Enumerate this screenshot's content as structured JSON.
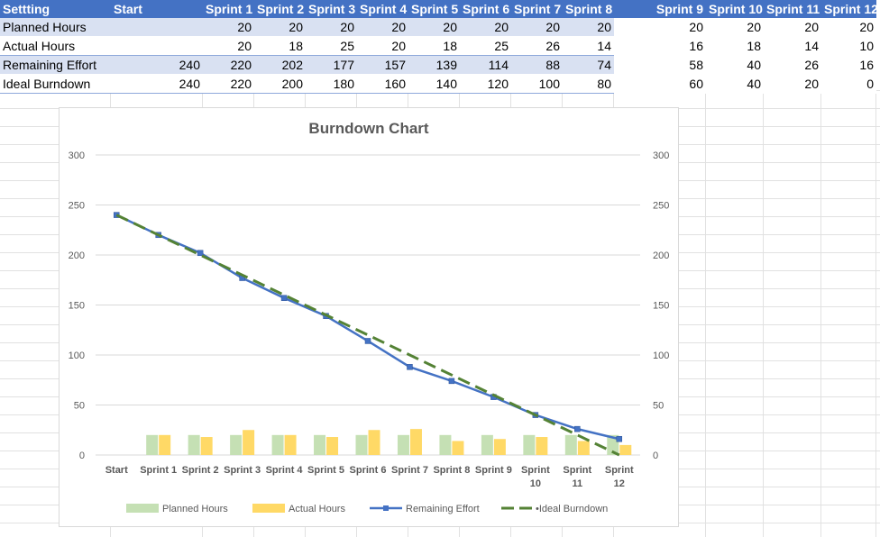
{
  "table": {
    "headers": [
      "Settting",
      "Start",
      "Sprint 1",
      "Sprint 2",
      "Sprint 3",
      "Sprint 4",
      "Sprint 5",
      "Sprint 6",
      "Sprint 7",
      "Sprint 8",
      "Sprint 9",
      "Sprint 10",
      "Sprint 11",
      "Sprint 12"
    ],
    "rows": [
      {
        "label": "Planned Hours",
        "cells": [
          "",
          "20",
          "20",
          "20",
          "20",
          "20",
          "20",
          "20",
          "20",
          "20",
          "20",
          "20",
          "20"
        ]
      },
      {
        "label": "Actual Hours",
        "cells": [
          "",
          "20",
          "18",
          "25",
          "20",
          "18",
          "25",
          "26",
          "14",
          "16",
          "18",
          "14",
          "10"
        ]
      },
      {
        "label": "Remaining Effort",
        "cells": [
          "240",
          "220",
          "202",
          "177",
          "157",
          "139",
          "114",
          "88",
          "74",
          "58",
          "40",
          "26",
          "16"
        ]
      },
      {
        "label": "Ideal Burndown",
        "cells": [
          "240",
          "220",
          "200",
          "180",
          "160",
          "140",
          "120",
          "100",
          "80",
          "60",
          "40",
          "20",
          "0"
        ]
      }
    ]
  },
  "chart_data": {
    "type": "bar",
    "title": "Burndown Chart",
    "categories": [
      "Start",
      "Sprint 1",
      "Sprint 2",
      "Sprint 3",
      "Sprint 4",
      "Sprint 5",
      "Sprint 6",
      "Sprint 7",
      "Sprint 8",
      "Sprint 9",
      "Sprint 10",
      "Sprint 11",
      "Sprint 12"
    ],
    "series": [
      {
        "name": "Planned Hours",
        "kind": "bar",
        "color": "#C5E0B4",
        "values": [
          null,
          20,
          20,
          20,
          20,
          20,
          20,
          20,
          20,
          20,
          20,
          20,
          20
        ]
      },
      {
        "name": "Actual Hours",
        "kind": "bar",
        "color": "#FFD966",
        "values": [
          null,
          20,
          18,
          25,
          20,
          18,
          25,
          26,
          14,
          16,
          18,
          14,
          10
        ]
      },
      {
        "name": "Remaining Effort",
        "kind": "line",
        "color": "#4472C4",
        "values": [
          240,
          220,
          202,
          177,
          157,
          139,
          114,
          88,
          74,
          58,
          40,
          26,
          16
        ]
      },
      {
        "name": "Ideal Burndown",
        "kind": "dashed-line",
        "color": "#548235",
        "values": [
          240,
          220,
          200,
          180,
          160,
          140,
          120,
          100,
          80,
          60,
          40,
          20,
          0
        ]
      }
    ],
    "ylim": [
      0,
      300
    ],
    "yticks": [
      0,
      50,
      100,
      150,
      200,
      250,
      300
    ],
    "y2lim": [
      0,
      300
    ],
    "y2ticks": [
      0,
      50,
      100,
      150,
      200,
      250,
      300
    ],
    "grid": true,
    "legend": "bottom"
  }
}
